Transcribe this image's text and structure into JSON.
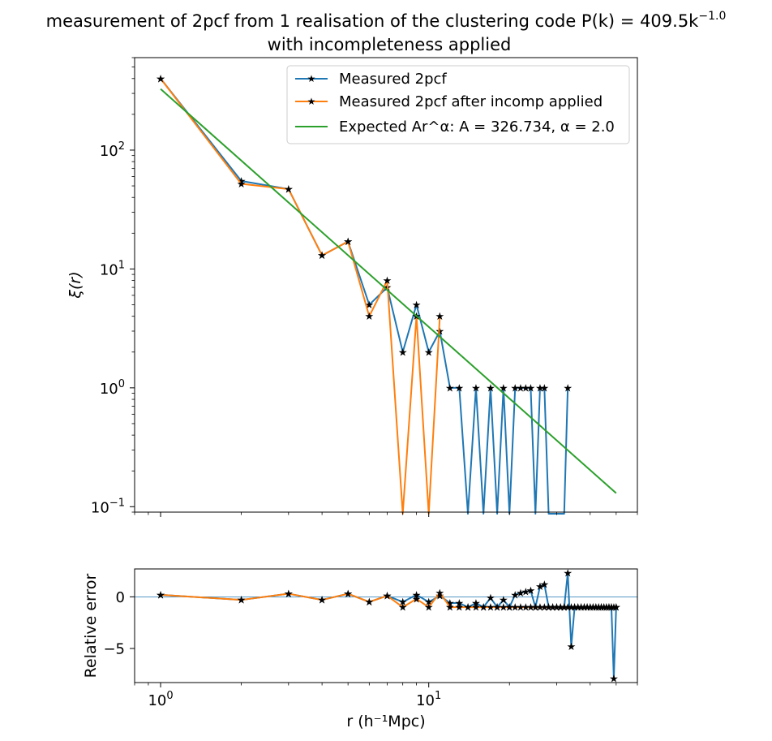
{
  "title_line1": "measurement of 2pcf from 1 realisation of the clustering code P(k) = 409.5k",
  "title_exp": "−1.0",
  "title_line2": "with incompleteness applied",
  "colors": {
    "blue": "#1f77b4",
    "orange": "#ff7f0e",
    "green": "#2ca02c",
    "zeroline": "#1f77b4"
  },
  "chart_data": [
    {
      "type": "line",
      "xscale": "log",
      "yscale": "log",
      "xlim": [
        0.8,
        60
      ],
      "ylim": [
        0.09,
        600
      ],
      "ylabel": "ξ(r)",
      "y_ticks": [
        {
          "value": 0.1,
          "base": "10",
          "exp": "−1"
        },
        {
          "value": 1,
          "base": "10",
          "exp": "0"
        },
        {
          "value": 10,
          "base": "10",
          "exp": "1"
        },
        {
          "value": 100,
          "base": "10",
          "exp": "2"
        }
      ],
      "legend_position": "upper right",
      "legend": [
        "Measured 2pcf",
        "Measured 2pcf after incomp applied",
        "Expected Ar^α: A = 326.734, α = 2.0"
      ],
      "series": [
        {
          "name": "Measured 2pcf",
          "marker": "star",
          "x": [
            1,
            2,
            3,
            4,
            5,
            6,
            7,
            8,
            9,
            10,
            11,
            12,
            13,
            14,
            15,
            16,
            17,
            18,
            19,
            20,
            21,
            22,
            23,
            24,
            25,
            26,
            27,
            28,
            29,
            30,
            31,
            32,
            33
          ],
          "y": [
            400,
            55,
            47,
            13,
            17,
            5,
            7,
            2,
            5,
            2,
            3,
            1,
            1,
            0,
            1,
            0,
            1,
            0,
            1,
            0,
            1,
            1,
            1,
            1,
            0,
            1,
            1,
            0,
            0,
            0,
            0,
            0,
            1
          ]
        },
        {
          "name": "Measured 2pcf after incomp applied",
          "marker": "star",
          "x": [
            1,
            2,
            3,
            4,
            5,
            6,
            7,
            8,
            9,
            10,
            11
          ],
          "y": [
            400,
            52,
            47,
            13,
            17,
            4,
            8,
            0,
            4,
            0,
            4
          ]
        },
        {
          "name": "Expected Ar^α: A = 326.734, α = 2.0",
          "marker": "none",
          "x": [
            1,
            50
          ],
          "y": [
            326.734,
            0.13
          ]
        }
      ]
    },
    {
      "type": "line",
      "xscale": "log",
      "yscale": "linear",
      "xlim": [
        0.8,
        60
      ],
      "ylim": [
        -8.3,
        2.7
      ],
      "xlabel": "r (h⁻¹Mpc)",
      "ylabel": "Relative error",
      "y_ticks": [
        0,
        -5
      ],
      "x_ticks": [
        {
          "value": 1,
          "base": "10",
          "exp": "0"
        },
        {
          "value": 10,
          "base": "10",
          "exp": "1"
        }
      ],
      "series": [
        {
          "name": "Measured 2pcf",
          "marker": "star",
          "x": [
            1,
            2,
            3,
            4,
            5,
            6,
            7,
            8,
            9,
            10,
            11,
            12,
            13,
            14,
            15,
            16,
            17,
            18,
            19,
            20,
            21,
            22,
            23,
            24,
            25,
            26,
            27,
            28,
            29,
            30,
            31,
            32,
            33,
            34,
            35,
            36,
            37,
            38,
            39,
            40,
            41,
            42,
            43,
            44,
            45,
            46,
            47,
            48,
            49,
            50
          ],
          "y": [
            0.2,
            -0.3,
            0.3,
            -0.3,
            0.3,
            -0.5,
            0.1,
            -0.5,
            0.2,
            -0.5,
            0.1,
            -0.6,
            -0.6,
            -1,
            -0.6,
            -1,
            -0.1,
            -1,
            -0.3,
            -1,
            0.2,
            0.4,
            0.5,
            0.6,
            -1,
            1.0,
            1.2,
            -1,
            -1,
            -1,
            -1,
            -1,
            2.3,
            -4.8,
            -1,
            -1,
            -1,
            -1,
            -1,
            -1,
            -1,
            -1,
            -1,
            -1,
            -1,
            -1,
            -1,
            -1,
            -7.9,
            -1
          ]
        },
        {
          "name": "Measured 2pcf after incomp applied",
          "marker": "star",
          "x": [
            1,
            2,
            3,
            4,
            5,
            6,
            7,
            8,
            9,
            10,
            11,
            12,
            13,
            14,
            15,
            16,
            17,
            18,
            19,
            20,
            21,
            22,
            23,
            24,
            25,
            26,
            27,
            28,
            29,
            30,
            31,
            32,
            33,
            34,
            35,
            36,
            37,
            38,
            39,
            40,
            41,
            42,
            43,
            44,
            45,
            46,
            47,
            48,
            49,
            50
          ],
          "y": [
            0.2,
            -0.3,
            0.3,
            -0.3,
            0.3,
            -0.5,
            0.1,
            -1,
            -0.2,
            -1,
            0.4,
            -1,
            -1,
            -1,
            -1,
            -1,
            -1,
            -1,
            -1,
            -1,
            -1,
            -1,
            -1,
            -1,
            -1,
            -1,
            -1,
            -1,
            -1,
            -1,
            -1,
            -1,
            -1,
            -1,
            -1,
            -1,
            -1,
            -1,
            -1,
            -1,
            -1,
            -1,
            -1,
            -1,
            -1,
            -1,
            -1,
            -1,
            -1,
            -1
          ]
        }
      ]
    }
  ]
}
